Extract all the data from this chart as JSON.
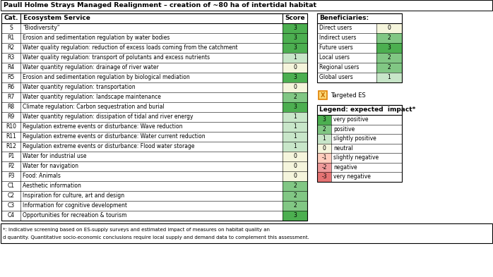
{
  "title": "Paull Holme Strays Managed Realignment – creation of ~80 ha of intertidal habitat",
  "main_table": {
    "headers": [
      "Cat.",
      "Ecosystem Service",
      "Score"
    ],
    "rows": [
      [
        "S",
        "\"Biodiversity\"",
        3
      ],
      [
        "R1",
        "Erosion and sedimentation regulation by water bodies",
        3
      ],
      [
        "R2",
        "Water quality regulation: reduction of excess loads coming from the catchment",
        3
      ],
      [
        "R3",
        "Water quality regulation: transport of polutants and excess nutrients",
        1
      ],
      [
        "R4",
        "Water quantity regulation: drainage of river water",
        0
      ],
      [
        "R5",
        "Erosion and sedimentation regulation by biological mediation",
        3
      ],
      [
        "R6",
        "Water quantity regulation: transportation",
        0
      ],
      [
        "R7",
        "Water quantity regulation: landscape maintenance",
        2
      ],
      [
        "R8",
        "Climate regulation: Carbon sequestration and burial",
        3
      ],
      [
        "R9",
        "Water quantity regulation: dissipation of tidal and river energy",
        1
      ],
      [
        "R10",
        "Regulation extreme events or disturbance: Wave reduction",
        1
      ],
      [
        "R11",
        "Regulation extreme events or disturbance: Water current reduction",
        1
      ],
      [
        "R12",
        "Regulation extreme events or disturbance: Flood water storage",
        1
      ],
      [
        "P1",
        "Water for industrial use",
        0
      ],
      [
        "P2",
        "Water for navigation",
        0
      ],
      [
        "P3",
        "Food: Animals",
        0
      ],
      [
        "C1",
        "Aesthetic information",
        2
      ],
      [
        "C2",
        "Inspiration for culture, art and design",
        2
      ],
      [
        "C3",
        "Information for cognitive development",
        2
      ],
      [
        "C4",
        "Opportunities for recreation & tourism",
        3
      ]
    ]
  },
  "beneficiaries_table": {
    "header": "Beneficiaries:",
    "rows": [
      [
        "Direct users",
        0
      ],
      [
        "Indirect users",
        2
      ],
      [
        "Future users",
        3
      ],
      [
        "Local users",
        2
      ],
      [
        "Regional users",
        2
      ],
      [
        "Global users",
        1
      ]
    ]
  },
  "legend_table": {
    "header": "Legend: expected  impact*",
    "rows": [
      [
        3,
        "very positive"
      ],
      [
        2,
        "positive"
      ],
      [
        1,
        "slightly positive"
      ],
      [
        0,
        "neutral"
      ],
      [
        -1,
        "slightly negative"
      ],
      [
        -2,
        "negative"
      ],
      [
        -3,
        "very negative"
      ]
    ]
  },
  "targeted_es_label": "Targeted ES",
  "footnote": "*: Indicative screening based on ES-supply surveys and estimated impact of measures on habitat quality and quantity. Quantitative socio-economic conclusions require local supply and demand data to complement this assessment.",
  "color_3": "#4CAF50",
  "color_2": "#81C784",
  "color_1": "#C8E6C9",
  "color_0": "#F5F5DC",
  "color_neg1": "#FFCCBC",
  "color_neg2": "#EF9A9A",
  "color_neg3": "#E57373"
}
